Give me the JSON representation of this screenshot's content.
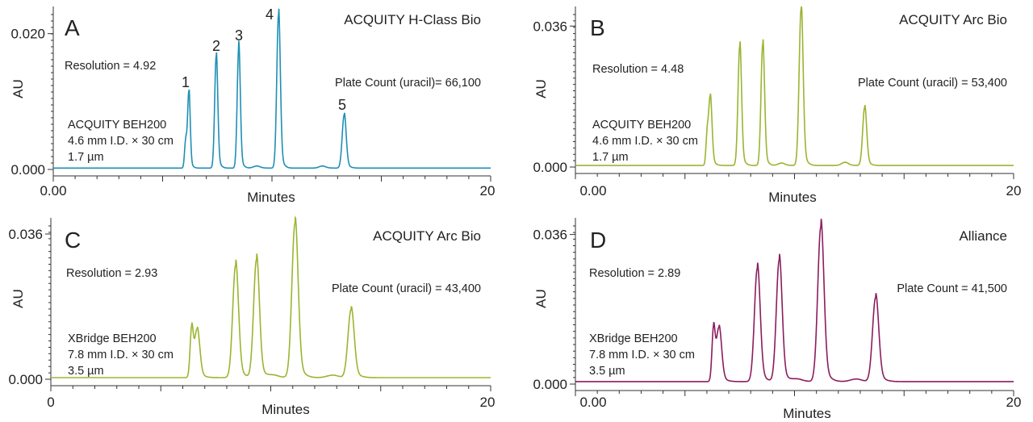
{
  "chart_data": [
    {
      "type": "line",
      "panel_label": "A",
      "instrument": "ACQUITY H-Class Bio",
      "color": "#1f8fb5",
      "xlabel": "Minutes",
      "ylabel": "AU",
      "xlim": [
        0,
        20
      ],
      "ylim": [
        0,
        0.024
      ],
      "x_tick_labels": [
        "0.00",
        "20"
      ],
      "y_tick_labels": [
        "0.000",
        "0.020"
      ],
      "y_tick_values": [
        0,
        0.02
      ],
      "resolution": "Resolution = 4.92",
      "plate_count": "Plate Count (uracil)= 66,100",
      "column": [
        "ACQUITY BEH200",
        "4.6 mm I.D. × 30 cm",
        "1.7 µm"
      ],
      "baseline": 0.0002,
      "peaks": [
        {
          "label": "",
          "t": 6.05,
          "h": 0.0038,
          "w": 0.05
        },
        {
          "label": "1",
          "t": 6.2,
          "h": 0.0112,
          "w": 0.06
        },
        {
          "label": "2",
          "t": 7.45,
          "h": 0.0165,
          "w": 0.07
        },
        {
          "label": "3",
          "t": 8.48,
          "h": 0.0177,
          "w": 0.07
        },
        {
          "label": "",
          "t": 9.3,
          "h": 0.0003,
          "w": 0.15
        },
        {
          "label": "4",
          "t": 10.3,
          "h": 0.0226,
          "w": 0.08
        },
        {
          "label": "",
          "t": 12.3,
          "h": 0.0003,
          "w": 0.15
        },
        {
          "label": "5",
          "t": 13.3,
          "h": 0.0078,
          "w": 0.09
        }
      ]
    },
    {
      "type": "line",
      "panel_label": "B",
      "instrument": "ACQUITY Arc Bio",
      "color": "#9ab531",
      "xlabel": "Minutes",
      "ylabel": "AU",
      "xlim": [
        0,
        20
      ],
      "ylim": [
        0,
        0.041
      ],
      "x_tick_labels": [
        "0.00",
        "20"
      ],
      "y_tick_labels": [
        "0.000",
        "0.036"
      ],
      "y_tick_values": [
        0,
        0.036
      ],
      "resolution": "Resolution = 4.48",
      "plate_count": "Plate Count (uracil) = 53,400",
      "column": [
        "ACQUITY BEH200",
        "4.6 mm I.D. × 30 cm",
        "1.7 µm"
      ],
      "baseline": 0.0004,
      "peaks": [
        {
          "label": "",
          "t": 6.0,
          "h": 0.0058,
          "w": 0.05
        },
        {
          "label": "",
          "t": 6.15,
          "h": 0.0175,
          "w": 0.08
        },
        {
          "label": "",
          "t": 7.5,
          "h": 0.0305,
          "w": 0.08
        },
        {
          "label": "",
          "t": 8.55,
          "h": 0.031,
          "w": 0.08
        },
        {
          "label": "",
          "t": 9.4,
          "h": 0.0006,
          "w": 0.15
        },
        {
          "label": "",
          "t": 10.3,
          "h": 0.04,
          "w": 0.09
        },
        {
          "label": "",
          "t": 12.3,
          "h": 0.0008,
          "w": 0.15
        },
        {
          "label": "",
          "t": 13.2,
          "h": 0.0148,
          "w": 0.09
        }
      ]
    },
    {
      "type": "line",
      "panel_label": "C",
      "instrument": "ACQUITY Arc Bio",
      "color": "#9ab531",
      "xlabel": "Minutes",
      "ylabel": "AU",
      "xlim": [
        0,
        20
      ],
      "ylim": [
        0,
        0.04
      ],
      "x_tick_labels": [
        "0",
        "20"
      ],
      "y_tick_labels": [
        "0.000",
        "0.036"
      ],
      "y_tick_values": [
        0,
        0.036
      ],
      "resolution": "Resolution = 2.93",
      "plate_count": "Plate Count (uracil) = 43,400",
      "column": [
        "XBridge  BEH200",
        "7.8 mm I.D. × 30 cm",
        "3.5 µm"
      ],
      "baseline": 0.0004,
      "peaks": [
        {
          "label": "",
          "t": 6.4,
          "h": 0.0115,
          "w": 0.07
        },
        {
          "label": "",
          "t": 6.65,
          "h": 0.0118,
          "w": 0.12
        },
        {
          "label": "",
          "t": 8.4,
          "h": 0.0278,
          "w": 0.13
        },
        {
          "label": "",
          "t": 9.35,
          "h": 0.0292,
          "w": 0.13
        },
        {
          "label": "",
          "t": 10.1,
          "h": 0.0006,
          "w": 0.25
        },
        {
          "label": "",
          "t": 11.1,
          "h": 0.0382,
          "w": 0.14
        },
        {
          "label": "",
          "t": 12.8,
          "h": 0.0006,
          "w": 0.25
        },
        {
          "label": "",
          "t": 13.65,
          "h": 0.0168,
          "w": 0.14
        }
      ]
    },
    {
      "type": "line",
      "panel_label": "D",
      "instrument": "Alliance",
      "color": "#8b1c5e",
      "xlabel": "Minutes",
      "ylabel": "AU",
      "xlim": [
        0,
        20
      ],
      "ylim": [
        0,
        0.04
      ],
      "x_tick_labels": [
        "0.00",
        "20"
      ],
      "y_tick_labels": [
        "0.000",
        "0.036"
      ],
      "y_tick_values": [
        0,
        0.036
      ],
      "resolution": "Resolution = 2.89",
      "plate_count": "Plate Count = 41,500",
      "column": [
        "XBridge BEH200",
        "7.8 mm I.D. × 30 cm",
        "3.5 µm"
      ],
      "baseline": 0.0006,
      "peaks": [
        {
          "label": "",
          "t": 6.3,
          "h": 0.012,
          "w": 0.07
        },
        {
          "label": "",
          "t": 6.55,
          "h": 0.0128,
          "w": 0.12
        },
        {
          "label": "",
          "t": 8.3,
          "h": 0.0272,
          "w": 0.13
        },
        {
          "label": "",
          "t": 9.3,
          "h": 0.0292,
          "w": 0.13
        },
        {
          "label": "",
          "t": 10.1,
          "h": 0.0006,
          "w": 0.25
        },
        {
          "label": "",
          "t": 11.2,
          "h": 0.0372,
          "w": 0.14
        },
        {
          "label": "",
          "t": 12.8,
          "h": 0.0006,
          "w": 0.25
        },
        {
          "label": "",
          "t": 13.7,
          "h": 0.0202,
          "w": 0.14
        }
      ]
    }
  ]
}
